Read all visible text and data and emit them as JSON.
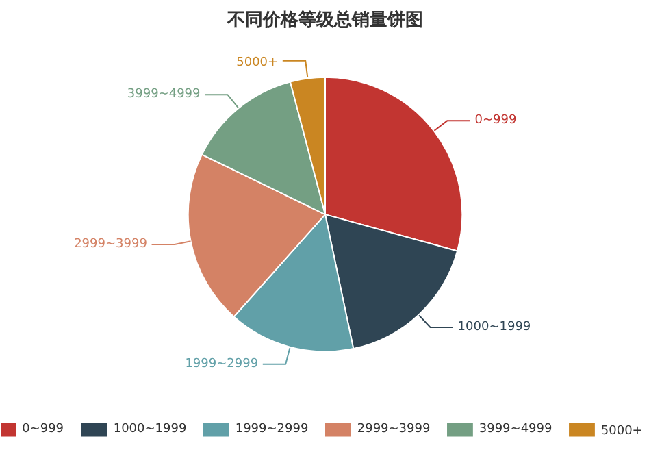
{
  "chart_data": {
    "type": "pie",
    "title": "不同价格等级总销量饼图",
    "categories": [
      "0~999",
      "1000~1999",
      "1999~2999",
      "2999~3999",
      "3999~4999",
      "5000+"
    ],
    "values": [
      29.3,
      17.4,
      14.9,
      20.6,
      13.7,
      4.1
    ],
    "colors": [
      "#c23531",
      "#2f4554",
      "#61a0a8",
      "#d48265",
      "#749f83",
      "#ca8622"
    ],
    "legend": "bottom"
  }
}
